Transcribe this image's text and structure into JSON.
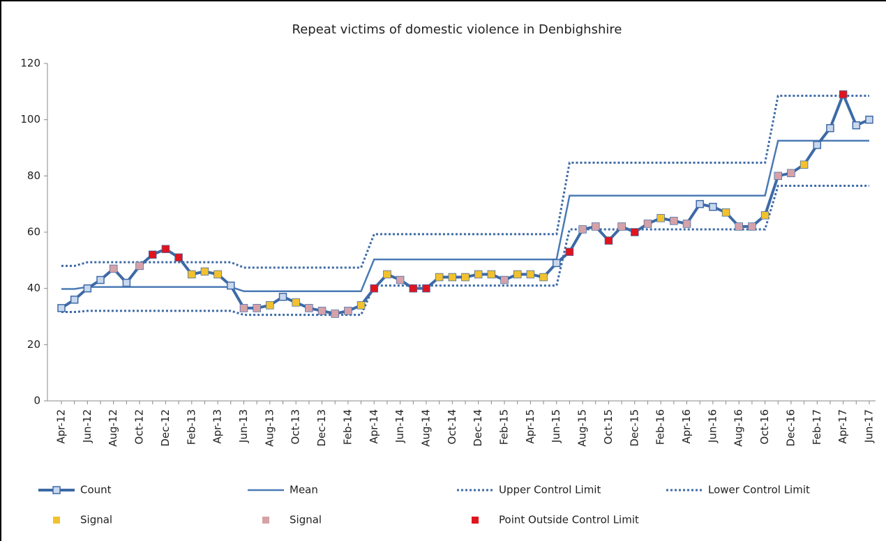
{
  "chart_data": {
    "type": "line",
    "title": "Repeat victims of domestic violence in Denbighshire",
    "categories": [
      "Apr-12",
      null,
      "Jun-12",
      null,
      "Aug-12",
      null,
      "Oct-12",
      null,
      "Dec-12",
      null,
      "Feb-13",
      null,
      "Apr-13",
      null,
      "Jun-13",
      null,
      "Aug-13",
      null,
      "Oct-13",
      null,
      "Dec-13",
      null,
      "Feb-14",
      null,
      "Apr-14",
      null,
      "Jun-14",
      null,
      "Aug-14",
      null,
      "Oct-14",
      null,
      "Dec-14",
      null,
      "Feb-15",
      null,
      "Apr-15",
      null,
      "Jun-15",
      null,
      "Aug-15",
      null,
      "Oct-15",
      null,
      "Dec-15",
      null,
      "Feb-16",
      null,
      "Apr-16",
      null,
      "Jun-16",
      null,
      "Aug-16",
      null,
      "Oct-16",
      null,
      "Dec-16",
      null,
      "Feb-17",
      null,
      "Apr-17",
      null,
      "Jun-17"
    ],
    "ylim": [
      0,
      120
    ],
    "yticks": [
      0,
      20,
      40,
      60,
      80,
      100,
      120
    ],
    "series": [
      {
        "name": "Count",
        "kind": "line-marker",
        "color": "#3d6aa6",
        "marker_color": "#c9d8ee",
        "values": [
          33,
          36,
          40,
          43,
          47,
          42,
          48,
          52,
          54,
          51,
          45,
          46,
          45,
          41,
          33,
          33,
          34,
          37,
          35,
          33,
          32,
          31,
          32,
          34,
          40,
          45,
          43,
          40,
          40,
          44,
          44,
          44,
          45,
          45,
          43,
          45,
          45,
          44,
          49,
          53,
          61,
          62,
          57,
          62,
          60,
          63,
          65,
          64,
          63,
          70,
          69,
          67,
          62,
          62,
          66,
          80,
          81,
          84,
          91,
          97,
          109,
          98,
          100
        ]
      },
      {
        "name": "Mean",
        "kind": "line",
        "color": "#4a7ab5",
        "values": [
          39.8,
          39.8,
          40.5,
          40.5,
          40.5,
          40.5,
          40.5,
          40.5,
          40.5,
          40.5,
          40.5,
          40.5,
          40.5,
          40.5,
          39,
          39,
          39,
          39,
          39,
          39,
          39,
          39,
          39,
          39,
          50.3,
          50.3,
          50.3,
          50.3,
          50.3,
          50.3,
          50.3,
          50.3,
          50.3,
          50.3,
          50.3,
          50.3,
          50.3,
          50.3,
          50.3,
          73,
          73,
          73,
          73,
          73,
          73,
          73,
          73,
          73,
          73,
          73,
          73,
          73,
          73,
          73,
          73,
          92.5,
          92.5,
          92.5,
          92.5,
          92.5,
          92.5,
          92.5,
          92.5
        ]
      },
      {
        "name": "Upper Control Limit",
        "kind": "dotted",
        "color": "#3d6aa6",
        "values": [
          48,
          48,
          49.3,
          49.3,
          49.3,
          49.3,
          49.3,
          49.3,
          49.3,
          49.3,
          49.3,
          49.3,
          49.3,
          49.3,
          47.4,
          47.4,
          47.4,
          47.4,
          47.4,
          47.4,
          47.4,
          47.4,
          47.4,
          47.4,
          59.3,
          59.3,
          59.3,
          59.3,
          59.3,
          59.3,
          59.3,
          59.3,
          59.3,
          59.3,
          59.3,
          59.3,
          59.3,
          59.3,
          59.3,
          84.7,
          84.7,
          84.7,
          84.7,
          84.7,
          84.7,
          84.7,
          84.7,
          84.7,
          84.7,
          84.7,
          84.7,
          84.7,
          84.7,
          84.7,
          84.7,
          108.5,
          108.5,
          108.5,
          108.5,
          108.5,
          108.5,
          108.5,
          108.5
        ]
      },
      {
        "name": "Lower Control Limit",
        "kind": "dotted",
        "color": "#3d6aa6",
        "values": [
          31.6,
          31.6,
          32,
          32,
          32,
          32,
          32,
          32,
          32,
          32,
          32,
          32,
          32,
          32,
          30.6,
          30.6,
          30.6,
          30.6,
          30.6,
          30.6,
          30.6,
          30.6,
          30.6,
          30.6,
          41,
          41,
          41,
          41,
          41,
          41,
          41,
          41,
          41,
          41,
          41,
          41,
          41,
          41,
          41,
          61,
          61,
          61,
          61,
          61,
          61,
          61,
          61,
          61,
          61,
          61,
          61,
          61,
          61,
          61,
          61,
          76.5,
          76.5,
          76.5,
          76.5,
          76.5,
          76.5,
          76.5,
          76.5
        ]
      },
      {
        "name": "Signal",
        "kind": "markers",
        "color": "#f2c12e",
        "values": [
          null,
          null,
          null,
          null,
          null,
          null,
          null,
          null,
          null,
          null,
          45,
          46,
          45,
          null,
          null,
          null,
          34,
          null,
          35,
          null,
          null,
          null,
          null,
          34,
          null,
          45,
          null,
          null,
          null,
          44,
          44,
          44,
          45,
          45,
          null,
          45,
          45,
          44,
          null,
          null,
          null,
          null,
          null,
          null,
          null,
          null,
          65,
          null,
          null,
          null,
          null,
          67,
          null,
          null,
          66,
          null,
          null,
          84,
          null,
          null,
          null,
          null,
          null
        ]
      },
      {
        "name": "Signal",
        "kind": "markers",
        "color": "#d6a2a8",
        "values": [
          null,
          null,
          null,
          null,
          47,
          null,
          48,
          null,
          null,
          null,
          null,
          null,
          null,
          null,
          33,
          33,
          null,
          null,
          null,
          33,
          32,
          31,
          32,
          null,
          null,
          null,
          43,
          null,
          null,
          null,
          null,
          null,
          null,
          null,
          43,
          null,
          null,
          null,
          null,
          null,
          61,
          62,
          null,
          62,
          null,
          63,
          null,
          64,
          63,
          null,
          null,
          null,
          62,
          62,
          null,
          80,
          81,
          null,
          null,
          null,
          null,
          null,
          null
        ]
      },
      {
        "name": "Point Outside Control Limit",
        "kind": "markers",
        "color": "#e0141e",
        "values": [
          null,
          null,
          null,
          null,
          null,
          null,
          null,
          52,
          54,
          51,
          null,
          null,
          null,
          null,
          null,
          null,
          null,
          null,
          null,
          null,
          null,
          null,
          null,
          null,
          40,
          null,
          null,
          40,
          40,
          null,
          null,
          null,
          null,
          null,
          null,
          null,
          null,
          null,
          null,
          53,
          null,
          null,
          57,
          null,
          60,
          null,
          null,
          null,
          null,
          null,
          null,
          null,
          null,
          null,
          null,
          null,
          null,
          null,
          null,
          null,
          109,
          null,
          null
        ]
      }
    ]
  }
}
